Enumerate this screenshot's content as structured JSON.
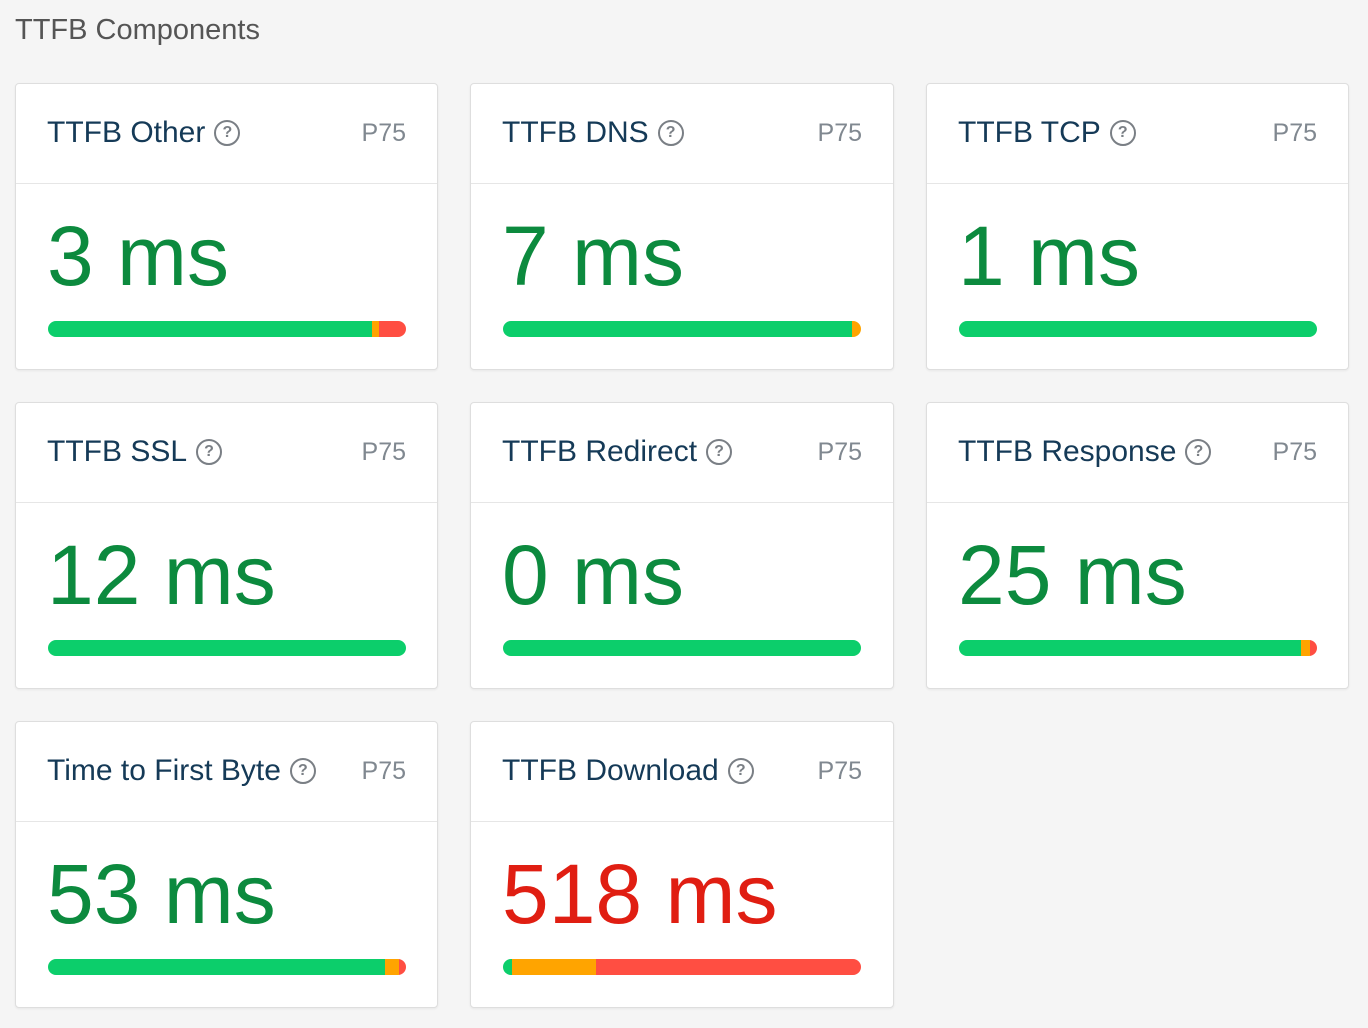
{
  "page": {
    "section_title": "TTFB Components"
  },
  "colors": {
    "good": "#0cce6b",
    "needs_improvement": "#ffa400",
    "poor": "#ff4e42",
    "value_good": "#0c8a3e",
    "value_poor": "#e01e12",
    "title": "#153a57"
  },
  "cards": [
    {
      "title": "TTFB Other",
      "help_icon": "help-circle-icon",
      "percentile": "P75",
      "value": "3 ms",
      "status": "good",
      "distribution": {
        "good": 0.905,
        "needs_improvement": 0.02,
        "poor": 0.075
      }
    },
    {
      "title": "TTFB DNS",
      "help_icon": "help-circle-icon",
      "percentile": "P75",
      "value": "7 ms",
      "status": "good",
      "distribution": {
        "good": 0.975,
        "needs_improvement": 0.025,
        "poor": 0
      }
    },
    {
      "title": "TTFB TCP",
      "help_icon": "help-circle-icon",
      "percentile": "P75",
      "value": "1 ms",
      "status": "good",
      "distribution": {
        "good": 1.0,
        "needs_improvement": 0,
        "poor": 0
      }
    },
    {
      "title": "TTFB SSL",
      "help_icon": "help-circle-icon",
      "percentile": "P75",
      "value": "12 ms",
      "status": "good",
      "distribution": {
        "good": 1.0,
        "needs_improvement": 0,
        "poor": 0
      }
    },
    {
      "title": "TTFB Redirect",
      "help_icon": "help-circle-icon",
      "percentile": "P75",
      "value": "0 ms",
      "status": "good",
      "distribution": {
        "good": 1.0,
        "needs_improvement": 0,
        "poor": 0
      }
    },
    {
      "title": "TTFB Response",
      "help_icon": "help-circle-icon",
      "percentile": "P75",
      "value": "25 ms",
      "status": "good",
      "distribution": {
        "good": 0.955,
        "needs_improvement": 0.025,
        "poor": 0.02
      }
    },
    {
      "title": "Time to First Byte",
      "help_icon": "help-circle-icon",
      "percentile": "P75",
      "value": "53 ms",
      "status": "good",
      "distribution": {
        "good": 0.94,
        "needs_improvement": 0.04,
        "poor": 0.02
      }
    },
    {
      "title": "TTFB Download",
      "help_icon": "help-circle-icon",
      "percentile": "P75",
      "value": "518 ms",
      "status": "poor",
      "distribution": {
        "good": 0.025,
        "needs_improvement": 0.235,
        "poor": 0.74
      }
    }
  ]
}
